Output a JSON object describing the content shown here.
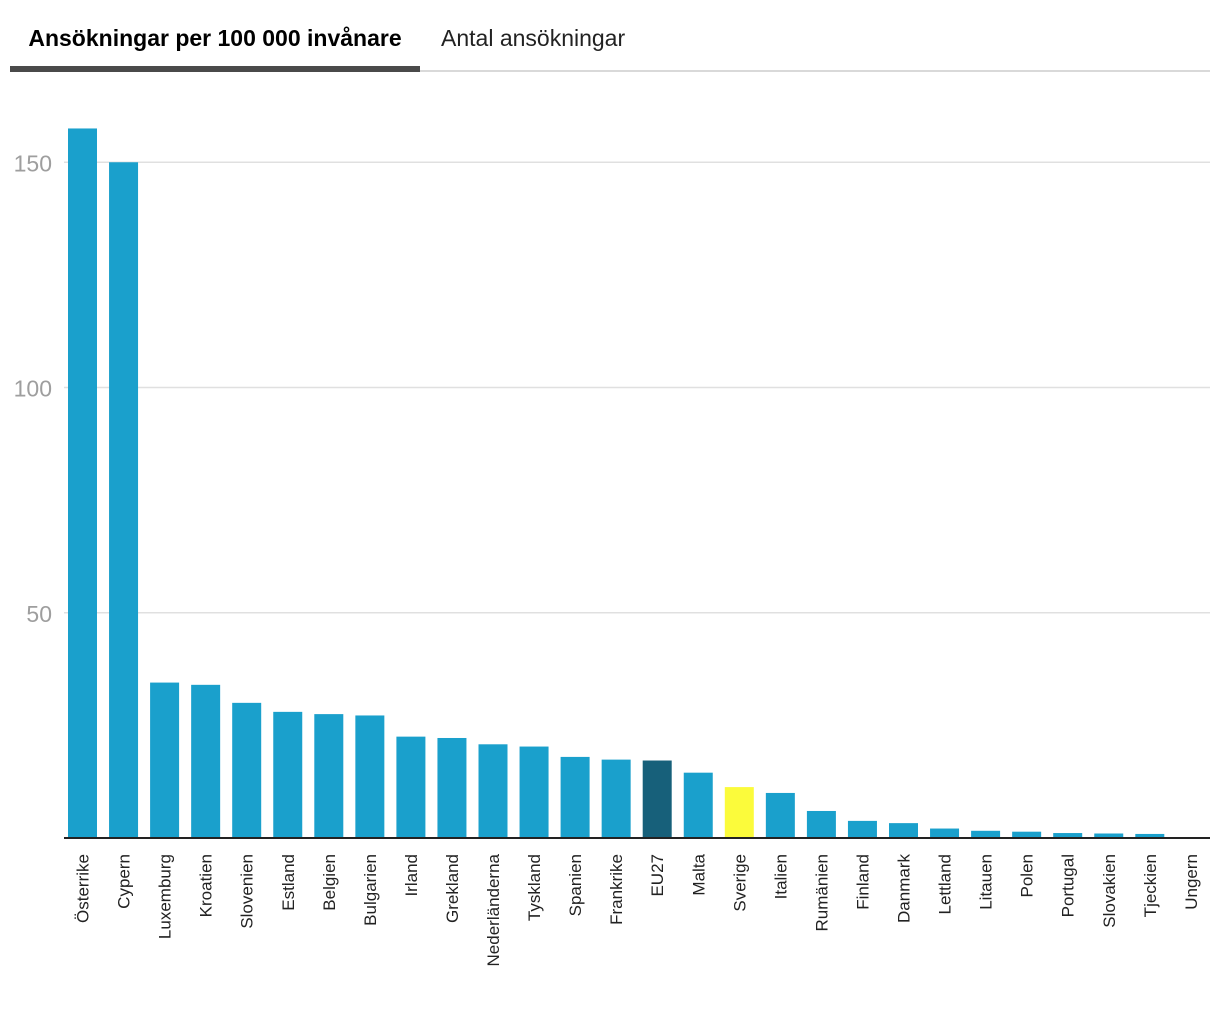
{
  "tabs": [
    {
      "label": "Ansökningar per 100 000 invånare",
      "active": true
    },
    {
      "label": "Antal ansökningar",
      "active": false
    }
  ],
  "chart_data": {
    "type": "bar",
    "categories": [
      "Österrike",
      "Cypern",
      "Luxemburg",
      "Kroatien",
      "Slovenien",
      "Estland",
      "Belgien",
      "Bulgarien",
      "Irland",
      "Grekland",
      "Nederländerna",
      "Tyskland",
      "Spanien",
      "Frankrike",
      "EU27",
      "Malta",
      "Sverige",
      "Italien",
      "Rumänien",
      "Finland",
      "Danmark",
      "Lettland",
      "Litauen",
      "Polen",
      "Portugal",
      "Slovakien",
      "Tjeckien",
      "Ungern"
    ],
    "values": [
      157.5,
      150.0,
      34.5,
      34.0,
      30.0,
      28.0,
      27.5,
      27.2,
      22.5,
      22.2,
      20.8,
      20.3,
      18.0,
      17.4,
      17.2,
      14.5,
      11.3,
      10.0,
      6.0,
      3.8,
      3.3,
      2.1,
      1.6,
      1.4,
      1.1,
      1.0,
      0.9,
      0.0
    ],
    "bar_colors": [
      "#1aa0cc",
      "#1aa0cc",
      "#1aa0cc",
      "#1aa0cc",
      "#1aa0cc",
      "#1aa0cc",
      "#1aa0cc",
      "#1aa0cc",
      "#1aa0cc",
      "#1aa0cc",
      "#1aa0cc",
      "#1aa0cc",
      "#1aa0cc",
      "#1aa0cc",
      "#17607a",
      "#1aa0cc",
      "#fbfb3b",
      "#1aa0cc",
      "#1aa0cc",
      "#1aa0cc",
      "#1aa0cc",
      "#1aa0cc",
      "#1aa0cc",
      "#1aa0cc",
      "#1aa0cc",
      "#1aa0cc",
      "#1aa0cc",
      "#1aa0cc"
    ],
    "yticks": [
      50,
      100,
      150
    ],
    "ylim": [
      0,
      160
    ],
    "grid": true
  }
}
